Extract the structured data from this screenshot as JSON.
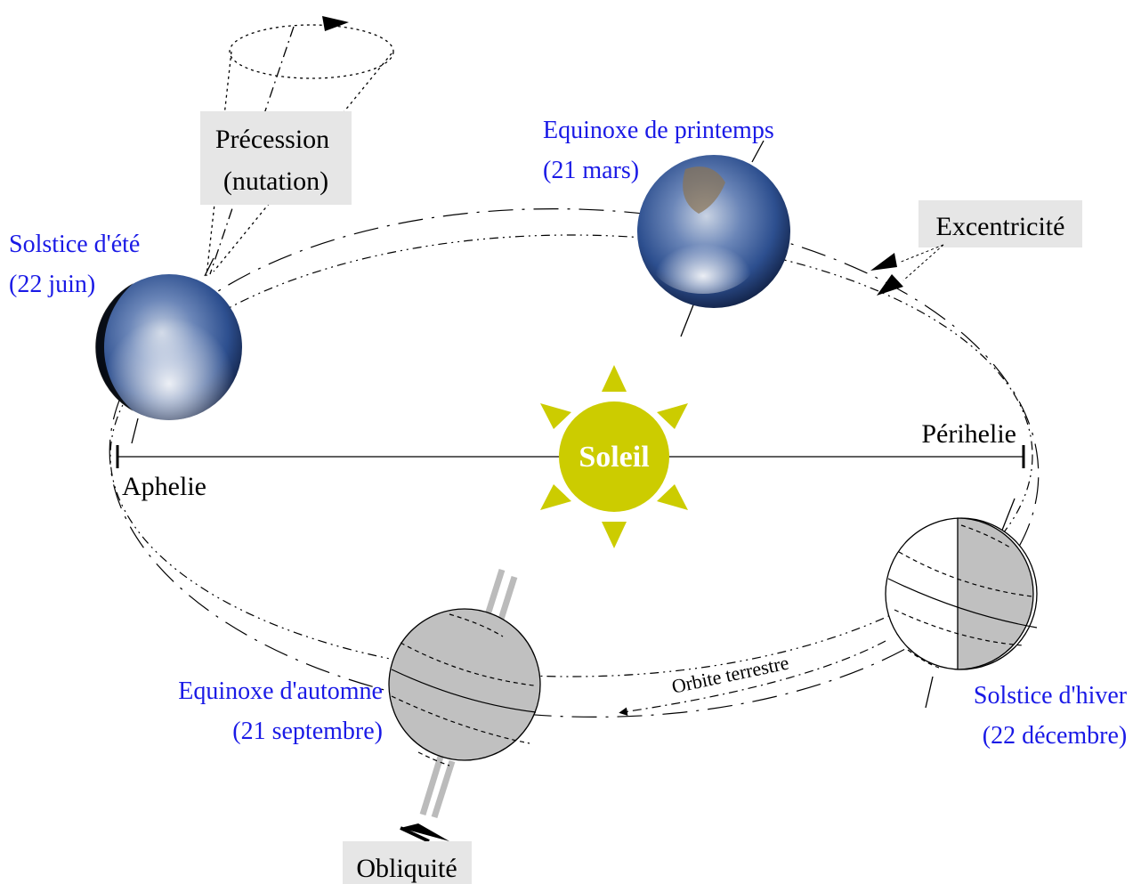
{
  "precession": {
    "title": "Précession",
    "subtitle": "(nutation)"
  },
  "excentricity": "Excentricité",
  "obliquity": "Obliquité",
  "sun": "Soleil",
  "apsides": {
    "perihelion": "Périhelie",
    "aphelion": "Aphelie"
  },
  "orbit": "Orbite terrestre",
  "seasons": [
    {
      "name": "Solstice d'été",
      "date": "(22 juin)"
    },
    {
      "name": "Equinoxe de printemps",
      "date": "(21 mars)"
    },
    {
      "name": "Equinoxe d'automne",
      "date": "(21 septembre)"
    },
    {
      "name": "Solstice d'hiver",
      "date": "(22 décembre)"
    }
  ]
}
